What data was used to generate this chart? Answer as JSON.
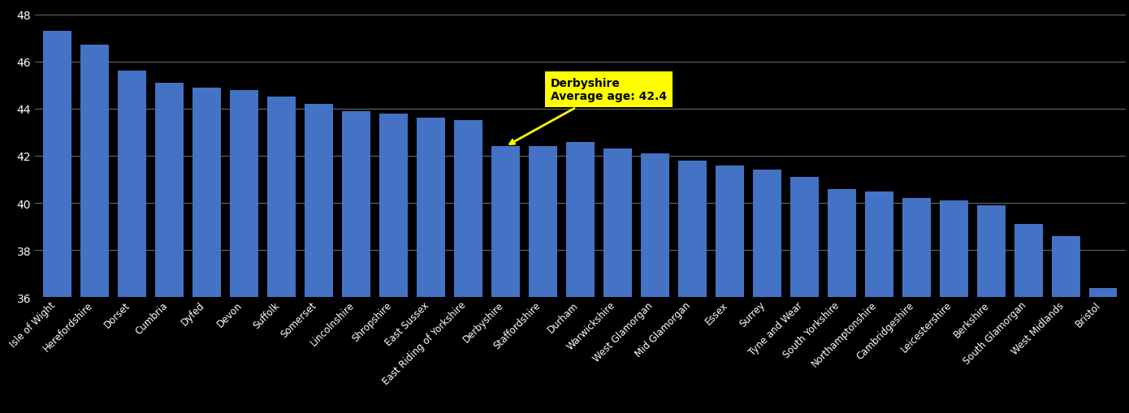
{
  "categories": [
    "Isle of Wight",
    "Herefordshire",
    "Dorset",
    "Cumbria",
    "Dyfed",
    "Devon",
    "Suffolk",
    "Somerset",
    "Lincolnshire",
    "Shropshire",
    "East Sussex",
    "East Riding of Yorkshire",
    "Derbyshire",
    "Staffordshire",
    "Durham",
    "Warwickshire",
    "West Glamorgan",
    "Mid Glamorgan",
    "Essex",
    "Surrey",
    "Tyne and Wear",
    "South Yorkshire",
    "Northamptonshire",
    "Cambridgeshire",
    "Leicestershire",
    "Berkshire",
    "South Glamorgan",
    "West Midlands",
    "Bristol"
  ],
  "values": [
    47.3,
    46.7,
    45.6,
    45.1,
    44.9,
    44.8,
    44.5,
    44.2,
    43.9,
    43.8,
    43.6,
    43.5,
    42.4,
    42.4,
    42.6,
    42.3,
    42.1,
    41.8,
    41.6,
    41.4,
    41.1,
    40.6,
    40.5,
    40.2,
    40.1,
    39.9,
    39.1,
    38.6,
    36.4
  ],
  "highlight_index": 12,
  "highlight_label": "Derbyshire",
  "highlight_value": 42.4,
  "bar_color": "#4472C4",
  "annotation_bg": "#FFFF00",
  "background_color": "#000000",
  "text_color": "#FFFFFF",
  "grid_color": "#666666",
  "ylim": [
    36,
    48.5
  ],
  "yticks": [
    36,
    38,
    40,
    42,
    44,
    46,
    48
  ],
  "bar_bottom": 36
}
